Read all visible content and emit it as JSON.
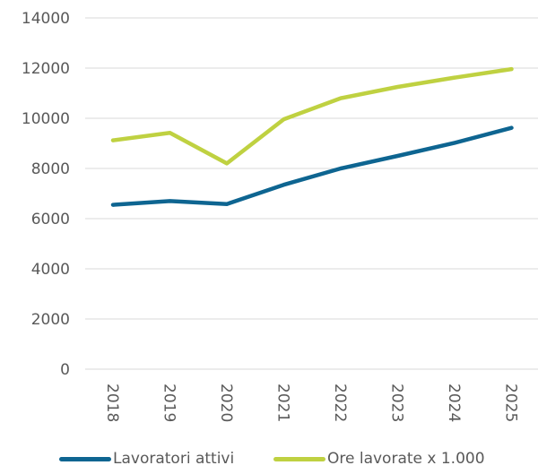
{
  "chart_data": {
    "type": "line",
    "title": "",
    "xlabel": "",
    "ylabel": "",
    "categories": [
      "2018",
      "2019",
      "2020",
      "2021",
      "2022",
      "2023",
      "2024",
      "2025"
    ],
    "ylim": [
      0,
      14000
    ],
    "yticks": [
      "0",
      "2000",
      "4000",
      "6000",
      "8000",
      "10000",
      "12000",
      "14000"
    ],
    "grid": true,
    "legend_position": "bottom",
    "series": [
      {
        "name": "Lavoratori attivi",
        "color": "#0E6591",
        "values": [
          6550,
          6700,
          6580,
          7350,
          8000,
          8500,
          9020,
          9620
        ]
      },
      {
        "name": "Ore lavorate x 1.000",
        "color": "#BFD141",
        "values": [
          9120,
          9420,
          8200,
          9960,
          10800,
          11250,
          11620,
          11960
        ]
      }
    ]
  }
}
